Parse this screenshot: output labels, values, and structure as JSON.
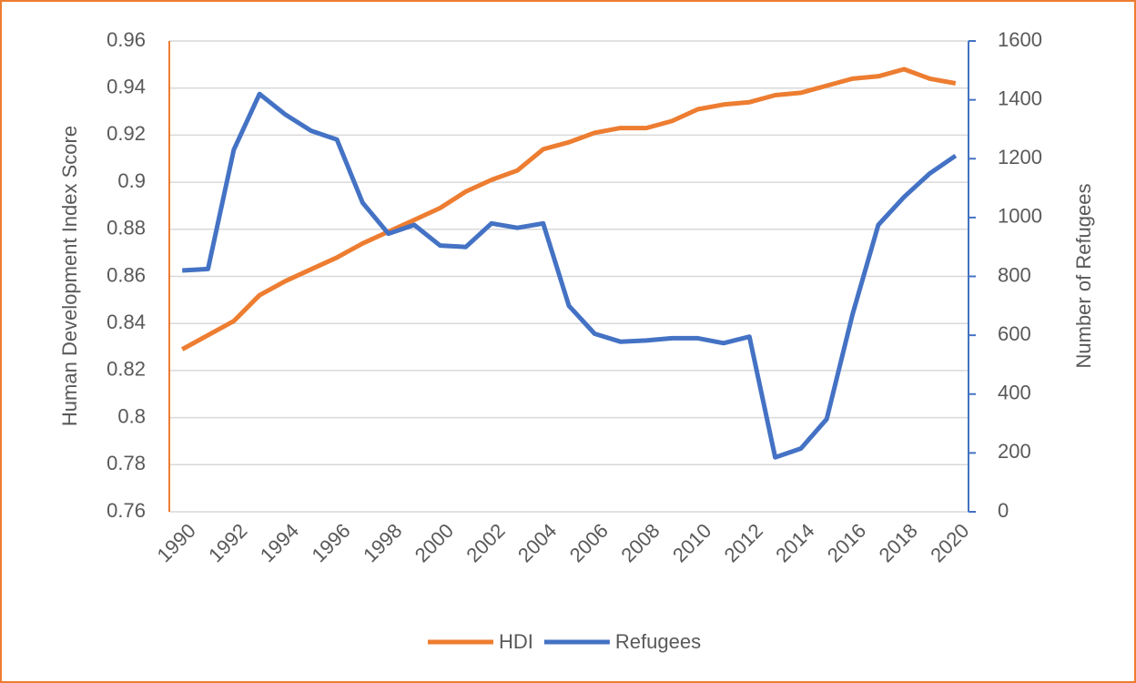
{
  "chart_data": {
    "type": "line",
    "categories": [
      "1990",
      null,
      "1992",
      null,
      "1994",
      null,
      "1996",
      null,
      "1998",
      null,
      "2000",
      null,
      "2002",
      null,
      "2004",
      null,
      "2006",
      null,
      "2008",
      null,
      "2010",
      null,
      "2012",
      null,
      "2014",
      null,
      "2016",
      null,
      "2018",
      null,
      "2020"
    ],
    "series": [
      {
        "name": "HDI",
        "color": "#ed7d31",
        "axis": "y",
        "values": [
          0.829,
          0.835,
          0.841,
          0.852,
          0.858,
          0.863,
          0.868,
          0.874,
          0.879,
          0.884,
          0.889,
          0.896,
          0.901,
          0.905,
          0.914,
          0.917,
          0.921,
          0.923,
          0.923,
          0.926,
          0.931,
          0.933,
          0.934,
          0.937,
          0.938,
          0.941,
          0.944,
          0.945,
          0.948,
          0.944,
          0.942
        ]
      },
      {
        "name": "Refugees",
        "color": "#4472c4",
        "axis": "y2",
        "values": [
          820,
          825,
          1230,
          1420,
          1350,
          1295,
          1265,
          1050,
          945,
          975,
          905,
          900,
          980,
          965,
          980,
          700,
          605,
          578,
          582,
          590,
          590,
          573,
          595,
          185,
          215,
          315,
          670,
          975,
          1070,
          1150,
          1210
        ]
      }
    ],
    "ylabel": "Human Development  Index Score",
    "y2label": "Number of Refugees",
    "ylim": [
      0.76,
      0.96
    ],
    "yticks": [
      0.76,
      0.78,
      0.8,
      0.82,
      0.84,
      0.86,
      0.88,
      0.9,
      0.92,
      0.94,
      0.96
    ],
    "y2lim": [
      0,
      1600
    ],
    "y2ticks": [
      0,
      200,
      400,
      600,
      800,
      1000,
      1200,
      1400,
      1600
    ],
    "grid": true,
    "legend": "bottom"
  }
}
